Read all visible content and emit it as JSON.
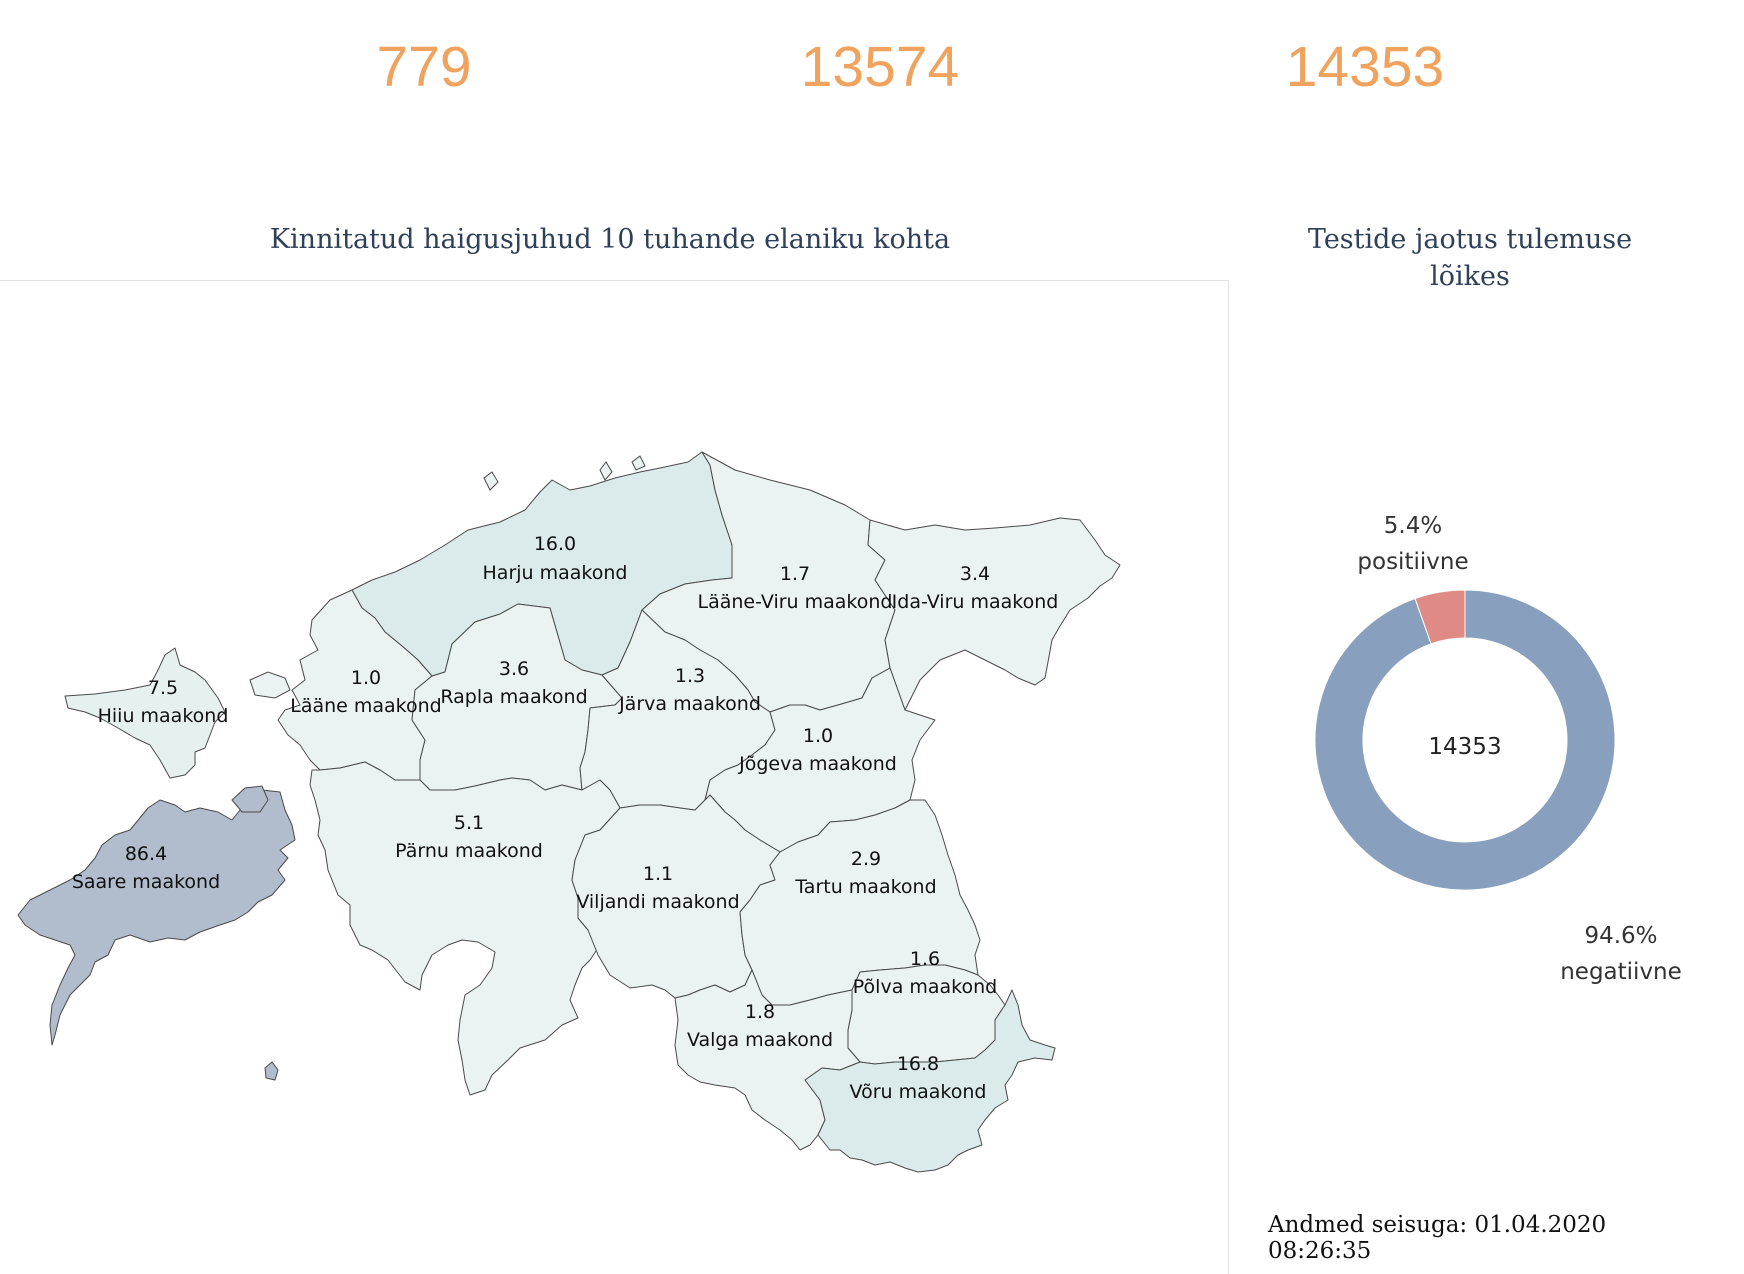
{
  "stats": {
    "positive": "779",
    "negative": "13574",
    "total": "14353"
  },
  "map": {
    "title": "Kinnitatud haigusjuhud 10 tuhande elaniku kohta",
    "regions": [
      {
        "id": "harju",
        "name": "Harju maakond",
        "value": "16.0",
        "color": "#dbeaea"
      },
      {
        "id": "laane-viru",
        "name": "Lääne-Viru maakond",
        "value": "1.7",
        "color": "#eaf3f1"
      },
      {
        "id": "ida-viru",
        "name": "Ida-Viru maakond",
        "value": "3.4",
        "color": "#eaf3f1"
      },
      {
        "id": "hiiu",
        "name": "Hiiu maakond",
        "value": "7.5",
        "color": "#e6f0ef"
      },
      {
        "id": "laane",
        "name": "Lääne maakond",
        "value": "1.0",
        "color": "#eaf3f1"
      },
      {
        "id": "rapla",
        "name": "Rapla maakond",
        "value": "3.6",
        "color": "#eaf3f1"
      },
      {
        "id": "jarva",
        "name": "Järva maakond",
        "value": "1.3",
        "color": "#eaf3f1"
      },
      {
        "id": "jogeva",
        "name": "Jõgeva maakond",
        "value": "1.0",
        "color": "#eaf3f1"
      },
      {
        "id": "saare",
        "name": "Saare maakond",
        "value": "86.4",
        "color": "#b1bccc"
      },
      {
        "id": "parnu",
        "name": "Pärnu maakond",
        "value": "5.1",
        "color": "#eaf3f1"
      },
      {
        "id": "viljandi",
        "name": "Viljandi maakond",
        "value": "1.1",
        "color": "#eaf3f1"
      },
      {
        "id": "tartu",
        "name": "Tartu maakond",
        "value": "2.9",
        "color": "#eaf3f1"
      },
      {
        "id": "polva",
        "name": "Põlva maakond",
        "value": "1.6",
        "color": "#eaf3f1"
      },
      {
        "id": "valga",
        "name": "Valga maakond",
        "value": "1.8",
        "color": "#eaf3f1"
      },
      {
        "id": "voru",
        "name": "Võru maakond",
        "value": "16.8",
        "color": "#dbeaea"
      }
    ]
  },
  "pie": {
    "title": "Testide jaotus tulemuse lõikes",
    "center": "14353",
    "positive_pct": "5.4%",
    "positive_label": "positiivne",
    "negative_pct": "94.6%",
    "negative_label": "negatiivne",
    "positive_share": 0.054,
    "positive_color": "#e08a86",
    "negative_color": "#889fbd"
  },
  "footer": "Andmed seisuga: 01.04.2020 08:26:35"
}
